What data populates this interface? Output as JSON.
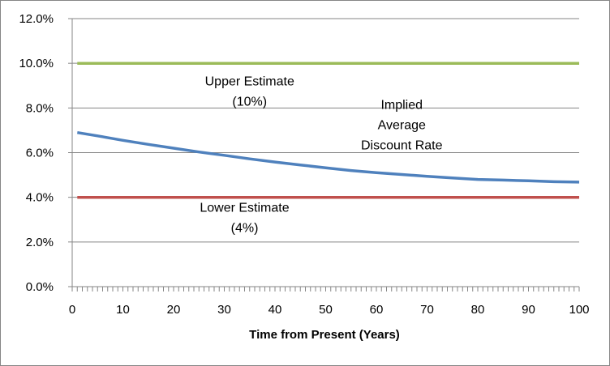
{
  "chart_data": {
    "type": "line",
    "title": "",
    "xlabel": "Time from Present (Years)",
    "ylabel": "",
    "xlim": [
      0,
      100
    ],
    "ylim": [
      0,
      0.12
    ],
    "x_ticks": [
      0,
      10,
      20,
      30,
      40,
      50,
      60,
      70,
      80,
      90,
      100
    ],
    "y_ticks": [
      0,
      0.02,
      0.04,
      0.06,
      0.08,
      0.1,
      0.12
    ],
    "y_tick_labels": [
      "0.0%",
      "2.0%",
      "4.0%",
      "6.0%",
      "8.0%",
      "10.0%",
      "12.0%"
    ],
    "grid": "horizontal",
    "legend": "none",
    "series": [
      {
        "color": "#9BBB59",
        "x": [
          1,
          100
        ],
        "y": [
          0.1,
          0.1
        ]
      },
      {
        "color": "#4F81BD",
        "x": [
          1,
          5,
          10,
          15,
          20,
          25,
          30,
          35,
          40,
          45,
          50,
          55,
          60,
          65,
          70,
          75,
          80,
          85,
          90,
          95,
          100
        ],
        "y": [
          0.069,
          0.0675,
          0.0655,
          0.0637,
          0.062,
          0.0603,
          0.0588,
          0.0572,
          0.0558,
          0.0545,
          0.0532,
          0.052,
          0.051,
          0.0502,
          0.0494,
          0.0487,
          0.048,
          0.0477,
          0.0474,
          0.047,
          0.0468
        ]
      },
      {
        "color": "#C0504D",
        "x": [
          1,
          100
        ],
        "y": [
          0.04,
          0.04
        ]
      }
    ],
    "annotations": [
      {
        "lines": [
          "Upper Estimate",
          "(10%)"
        ],
        "x": 35,
        "y": 0.0855
      },
      {
        "lines": [
          "Implied",
          "Average",
          "Discount Rate"
        ],
        "x": 65,
        "y": 0.0705
      },
      {
        "lines": [
          "Lower Estimate",
          "(4%)"
        ],
        "x": 34,
        "y": 0.029
      }
    ]
  }
}
